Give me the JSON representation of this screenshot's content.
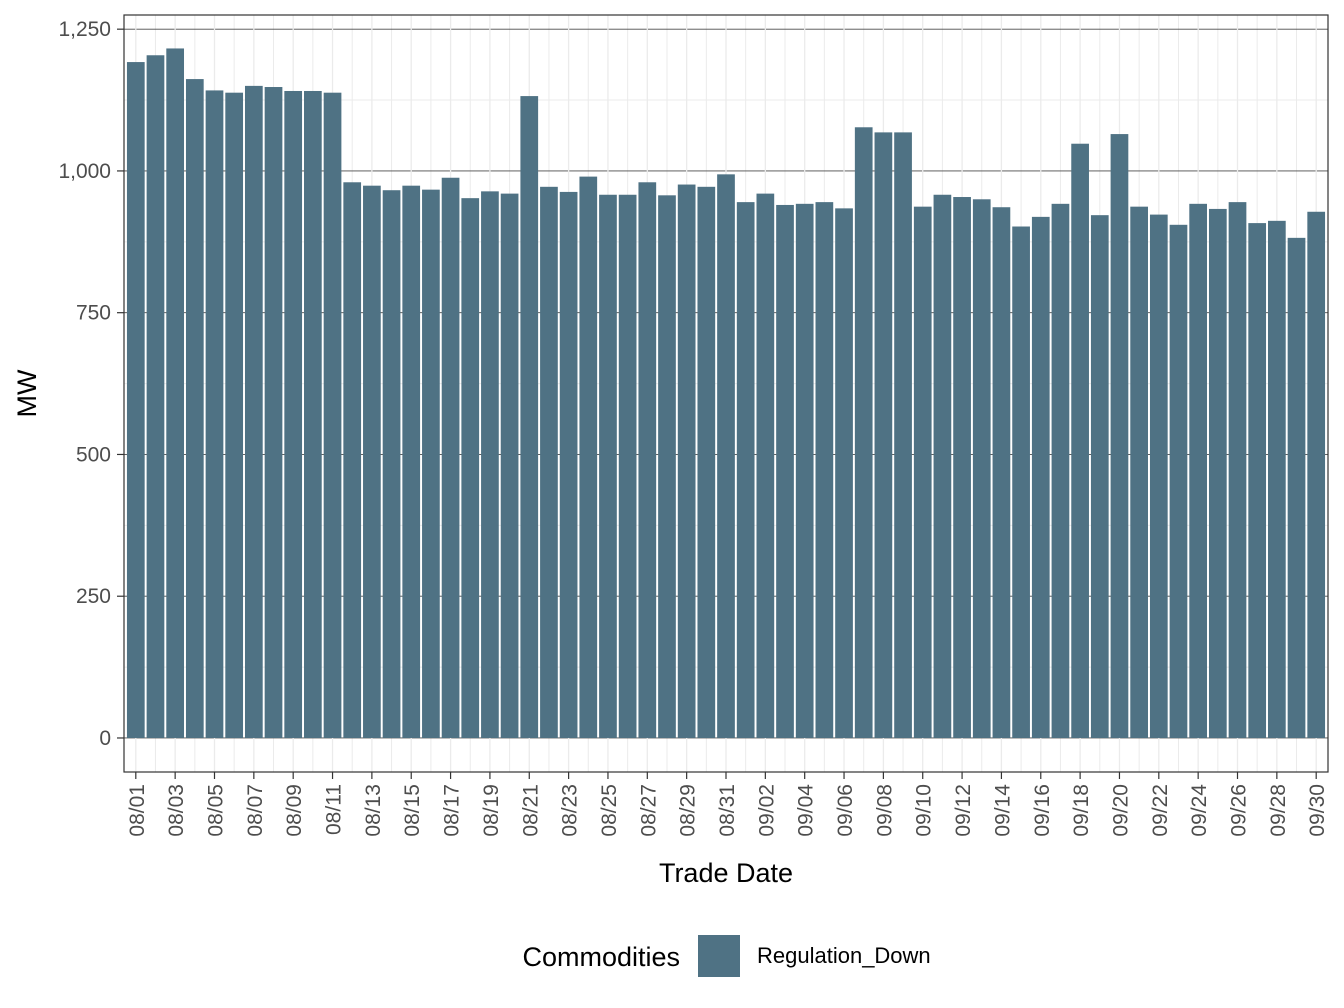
{
  "chart_data": {
    "type": "bar",
    "xlabel": "Trade Date",
    "ylabel": "MW",
    "ylim": [
      -60,
      1275
    ],
    "yticks": [
      0,
      250,
      500,
      750,
      1000,
      1250
    ],
    "ytick_labels": [
      "0",
      "250",
      "500",
      "750",
      "1,000",
      "1,250"
    ],
    "grid": true,
    "legend": {
      "title": "Commodities",
      "position": "bottom"
    },
    "categories": [
      "08/01",
      "08/02",
      "08/03",
      "08/04",
      "08/05",
      "08/06",
      "08/07",
      "08/08",
      "08/09",
      "08/10",
      "08/11",
      "08/12",
      "08/13",
      "08/14",
      "08/15",
      "08/16",
      "08/17",
      "08/18",
      "08/19",
      "08/20",
      "08/21",
      "08/22",
      "08/23",
      "08/24",
      "08/25",
      "08/26",
      "08/27",
      "08/28",
      "08/29",
      "08/30",
      "08/31",
      "09/01",
      "09/02",
      "09/03",
      "09/04",
      "09/05",
      "09/06",
      "09/07",
      "09/08",
      "09/09",
      "09/10",
      "09/11",
      "09/12",
      "09/13",
      "09/14",
      "09/15",
      "09/16",
      "09/17",
      "09/18",
      "09/19",
      "09/20",
      "09/21",
      "09/22",
      "09/23",
      "09/24",
      "09/25",
      "09/26",
      "09/27",
      "09/28",
      "09/29",
      "09/30"
    ],
    "series": [
      {
        "name": "Regulation_Down",
        "color": "#4f7284",
        "values": [
          1192,
          1204,
          1216,
          1162,
          1142,
          1138,
          1150,
          1148,
          1141,
          1141,
          1138,
          980,
          974,
          966,
          974,
          967,
          988,
          952,
          964,
          960,
          1132,
          972,
          963,
          990,
          958,
          958,
          980,
          957,
          976,
          972,
          994,
          945,
          960,
          940,
          942,
          945,
          934,
          1077,
          1068,
          1068,
          937,
          958,
          954,
          950,
          936,
          902,
          919,
          942,
          1048,
          922,
          1065,
          937,
          923,
          905,
          942,
          933,
          945,
          908,
          912,
          882,
          928
        ]
      }
    ]
  }
}
